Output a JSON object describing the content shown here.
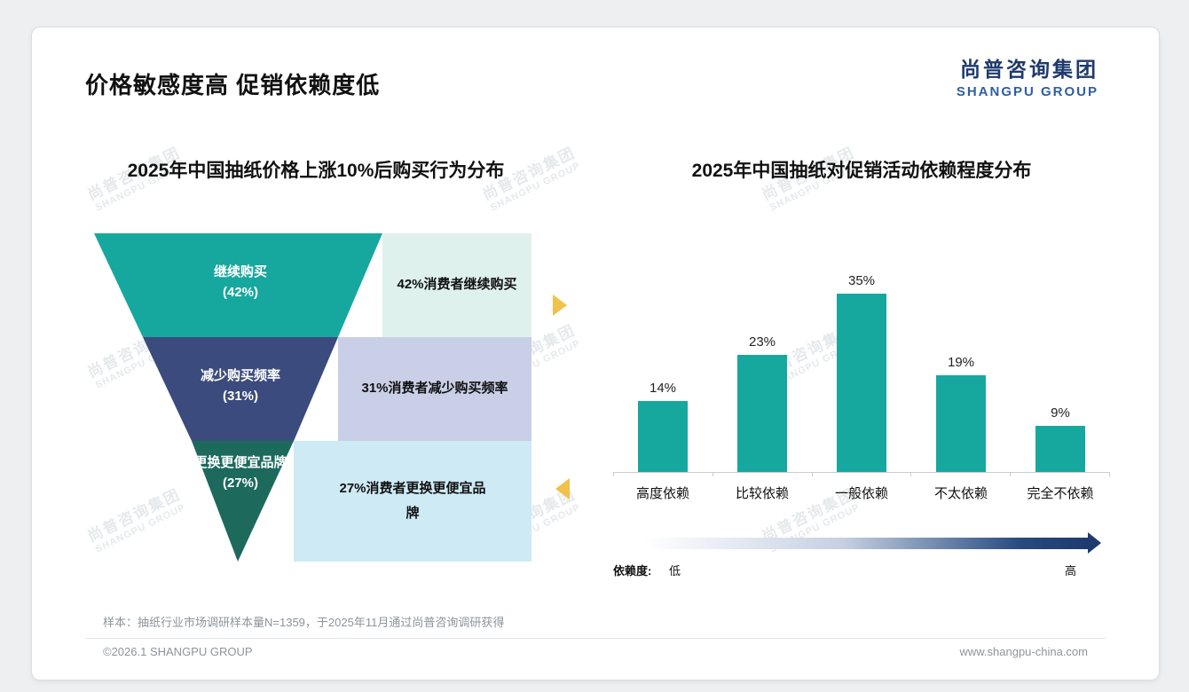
{
  "page": {
    "title": "价格敏感度高 促销依赖度低",
    "logo_cn": "尚普咨询集团",
    "logo_en": "SHANGPU GROUP",
    "watermark_cn": "尚普咨询集团",
    "watermark_en": "SHANGPU GROUP",
    "accent_arrow_color": "#f0c24b",
    "sample_note": "样本：抽纸行业市场调研样本量N=1359，于2025年11月通过尚普咨询调研获得",
    "copyright": "©2026.1 SHANGPU GROUP",
    "website": "www.shangpu-china.com"
  },
  "chart_data": [
    {
      "type": "funnel",
      "title": "2025年中国抽纸价格上涨10%后购买行为分布",
      "segments": [
        {
          "category": "继续购买",
          "value": 42,
          "value_label": "(42%)",
          "annotation": "42%消费者继续购买",
          "color": "#16a89f",
          "annotation_bg": "#def1ed"
        },
        {
          "category": "减少购买频率",
          "value": 31,
          "value_label": "(31%)",
          "annotation": "31%消费者减少购买频率",
          "color": "#3c4b7d",
          "annotation_bg": "#c9cfe7"
        },
        {
          "category": "更换更便宜品牌",
          "value": 27,
          "value_label": "(27%)",
          "annotation": "27%消费者更换更便宜品牌",
          "color": "#1d6a5d",
          "annotation_bg": "#cdeaf5"
        }
      ]
    },
    {
      "type": "bar",
      "title": "2025年中国抽纸对促销活动依赖程度分布",
      "categories": [
        "高度依赖",
        "比较依赖",
        "一般依赖",
        "不太依赖",
        "完全不依赖"
      ],
      "values": [
        14,
        23,
        35,
        19,
        9
      ],
      "value_labels": [
        "14%",
        "23%",
        "35%",
        "19%",
        "9%"
      ],
      "ylim": [
        0,
        35
      ],
      "bar_color": "#16a89f",
      "grid": "off",
      "axis_legend": {
        "name": "依赖度:",
        "low_label": "低",
        "high_label": "高",
        "gradient_start": "#ffffff",
        "gradient_end": "#1f3a6e"
      }
    }
  ]
}
